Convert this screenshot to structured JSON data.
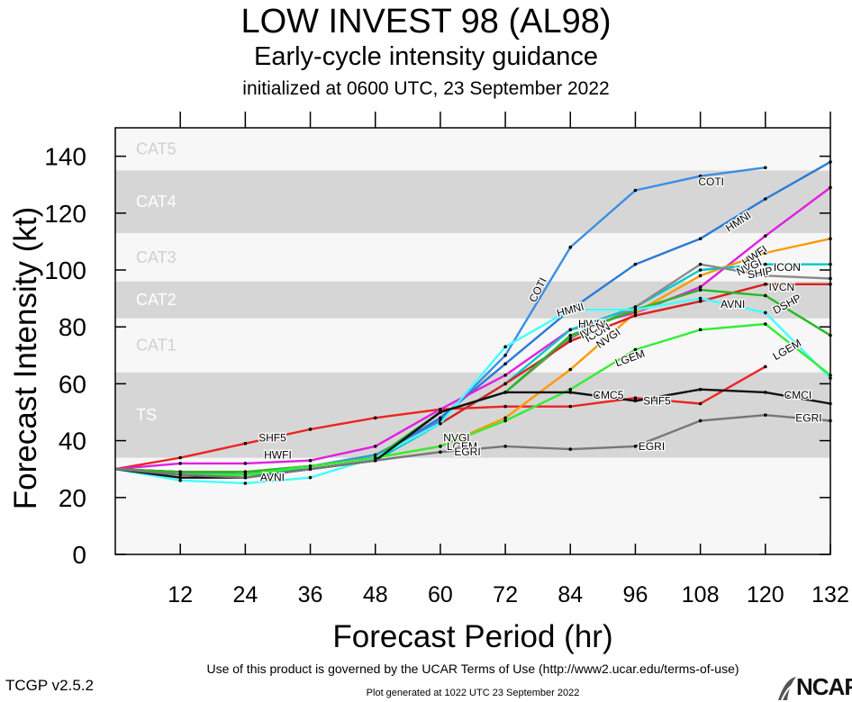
{
  "header": {
    "title": "LOW INVEST 98 (AL98)",
    "subtitle": "Early-cycle intensity guidance",
    "init": "initialized at 0600 UTC, 23 September 2022"
  },
  "footer": {
    "terms": "Use of this product is governed by the UCAR Terms of Use (http://www2.ucar.edu/terms-of-use)",
    "version": "TCGP v2.5.2",
    "generated": "Plot generated at 1022 UTC   23 September 2022",
    "logo": "NCAR"
  },
  "chart_data": {
    "type": "line",
    "xlabel": "Forecast Period (hr)",
    "ylabel": "Forecast Intensity (kt)",
    "xlim": [
      0,
      132
    ],
    "ylim": [
      0,
      150
    ],
    "xticks": [
      12,
      24,
      36,
      48,
      60,
      72,
      84,
      96,
      108,
      120,
      132
    ],
    "yticks": [
      0,
      20,
      40,
      60,
      80,
      100,
      120,
      140
    ],
    "categories": [
      {
        "name": "TS",
        "min": 34,
        "max": 64,
        "shaded": true
      },
      {
        "name": "CAT1",
        "min": 64,
        "max": 83,
        "shaded": false
      },
      {
        "name": "CAT2",
        "min": 83,
        "max": 96,
        "shaded": true
      },
      {
        "name": "CAT3",
        "min": 96,
        "max": 113,
        "shaded": false
      },
      {
        "name": "CAT4",
        "min": 113,
        "max": 135,
        "shaded": true
      },
      {
        "name": "CAT5",
        "min": 135,
        "max": 150,
        "shaded": false
      }
    ],
    "series": [
      {
        "name": "COTI",
        "color": "#3a8ee6",
        "points": [
          [
            0,
            30
          ],
          [
            12,
            28
          ],
          [
            24,
            28
          ],
          [
            36,
            31
          ],
          [
            48,
            35
          ],
          [
            60,
            47
          ],
          [
            72,
            70
          ],
          [
            84,
            108
          ],
          [
            96,
            128
          ],
          [
            108,
            133
          ],
          [
            120,
            136
          ]
        ],
        "labels": [
          {
            "text": "COTI",
            "x": 78,
            "y": 93,
            "angle": -63
          },
          {
            "text": "COTI",
            "x": 110,
            "y": 131,
            "angle": 0
          }
        ]
      },
      {
        "name": "HMNI",
        "color": "#2a7ad6",
        "points": [
          [
            0,
            30
          ],
          [
            12,
            29
          ],
          [
            24,
            28
          ],
          [
            36,
            31
          ],
          [
            48,
            34
          ],
          [
            60,
            48
          ],
          [
            72,
            67
          ],
          [
            84,
            86
          ],
          [
            96,
            102
          ],
          [
            108,
            111
          ],
          [
            120,
            125
          ],
          [
            132,
            138
          ]
        ],
        "labels": [
          {
            "text": "HMNI",
            "x": 84,
            "y": 86,
            "angle": -15
          },
          {
            "text": "HMNI",
            "x": 115,
            "y": 117,
            "angle": -33
          }
        ]
      },
      {
        "name": "SHF5",
        "color": "#ee2222",
        "points": [
          [
            0,
            30
          ],
          [
            12,
            34
          ],
          [
            24,
            39
          ],
          [
            36,
            44
          ],
          [
            48,
            48
          ],
          [
            60,
            51
          ],
          [
            72,
            52
          ],
          [
            84,
            52
          ],
          [
            96,
            55
          ],
          [
            108,
            53
          ],
          [
            120,
            66
          ]
        ],
        "labels": [
          {
            "text": "SHF5",
            "x": 29,
            "y": 41,
            "angle": 0
          },
          {
            "text": "SHF5",
            "x": 100,
            "y": 54,
            "angle": 0
          }
        ]
      },
      {
        "name": "HWFI",
        "color": "#e020e0",
        "points": [
          [
            0,
            30
          ],
          [
            12,
            32
          ],
          [
            24,
            32
          ],
          [
            36,
            33
          ],
          [
            48,
            38
          ],
          [
            60,
            51
          ],
          [
            72,
            63
          ],
          [
            84,
            79
          ],
          [
            96,
            85
          ],
          [
            108,
            94
          ],
          [
            120,
            112
          ],
          [
            132,
            129
          ]
        ],
        "labels": [
          {
            "text": "HWFI",
            "x": 30,
            "y": 35,
            "angle": 0
          },
          {
            "text": "HWFI",
            "x": 88,
            "y": 81,
            "angle": 0
          },
          {
            "text": "HWFI",
            "x": 118,
            "y": 105,
            "angle": -35
          }
        ]
      },
      {
        "name": "NVGI",
        "color": "#ff9900",
        "points": [
          [
            0,
            30
          ],
          [
            12,
            29
          ],
          [
            24,
            29
          ],
          [
            36,
            31
          ],
          [
            48,
            34
          ],
          [
            60,
            38
          ],
          [
            72,
            48
          ],
          [
            84,
            65
          ],
          [
            96,
            85
          ],
          [
            108,
            98
          ],
          [
            120,
            106
          ],
          [
            132,
            111
          ]
        ],
        "labels": [
          {
            "text": "NVGI",
            "x": 63,
            "y": 41,
            "angle": 0
          },
          {
            "text": "NVGI",
            "x": 91,
            "y": 76,
            "angle": -35
          },
          {
            "text": "NVGI",
            "x": 117,
            "y": 101,
            "angle": -25
          }
        ]
      },
      {
        "name": "ICON",
        "color": "#00c8c8",
        "points": [
          [
            0,
            30
          ],
          [
            12,
            29
          ],
          [
            24,
            28
          ],
          [
            36,
            30
          ],
          [
            48,
            33
          ],
          [
            60,
            46
          ],
          [
            72,
            60
          ],
          [
            84,
            79
          ],
          [
            96,
            87
          ],
          [
            108,
            100
          ],
          [
            120,
            102
          ],
          [
            132,
            102
          ]
        ],
        "labels": [
          {
            "text": "ICON",
            "x": 89,
            "y": 78,
            "angle": -30
          },
          {
            "text": "ICON",
            "x": 124,
            "y": 101,
            "angle": 0
          }
        ]
      },
      {
        "name": "SHIP",
        "color": "#8a8a8a",
        "points": [
          [
            0,
            30
          ],
          [
            12,
            29
          ],
          [
            24,
            29
          ],
          [
            36,
            31
          ],
          [
            48,
            34
          ],
          [
            60,
            50
          ],
          [
            72,
            57
          ],
          [
            84,
            76
          ],
          [
            96,
            87
          ],
          [
            108,
            102
          ],
          [
            120,
            98
          ],
          [
            132,
            97
          ]
        ],
        "labels": [
          {
            "text": "SHIP",
            "x": 119,
            "y": 99,
            "angle": -10
          }
        ]
      },
      {
        "name": "IVCN",
        "color": "#dd2020",
        "points": [
          [
            0,
            30
          ],
          [
            12,
            29
          ],
          [
            24,
            29
          ],
          [
            36,
            31
          ],
          [
            48,
            34
          ],
          [
            60,
            46
          ],
          [
            72,
            60
          ],
          [
            84,
            75
          ],
          [
            96,
            84
          ],
          [
            108,
            89
          ],
          [
            120,
            95
          ],
          [
            132,
            95
          ]
        ],
        "labels": [
          {
            "text": "IVCN",
            "x": 88,
            "y": 79,
            "angle": -28
          },
          {
            "text": "IVCN",
            "x": 123,
            "y": 94,
            "angle": 0
          }
        ]
      },
      {
        "name": "DSHP",
        "color": "#22bb22",
        "points": [
          [
            0,
            30
          ],
          [
            12,
            29
          ],
          [
            24,
            29
          ],
          [
            36,
            31
          ],
          [
            48,
            34
          ],
          [
            60,
            50
          ],
          [
            72,
            57
          ],
          [
            84,
            77
          ],
          [
            96,
            86
          ],
          [
            108,
            93
          ],
          [
            120,
            91
          ],
          [
            132,
            77
          ]
        ],
        "labels": [
          {
            "text": "DSHP",
            "x": 124,
            "y": 88,
            "angle": -28
          }
        ]
      },
      {
        "name": "AVNI",
        "color": "#44ffff",
        "points": [
          [
            0,
            30
          ],
          [
            12,
            26
          ],
          [
            24,
            25
          ],
          [
            36,
            27
          ],
          [
            48,
            34
          ],
          [
            60,
            46
          ],
          [
            72,
            73
          ],
          [
            84,
            86
          ],
          [
            96,
            86
          ],
          [
            108,
            90
          ],
          [
            120,
            85
          ],
          [
            132,
            62
          ]
        ],
        "labels": [
          {
            "text": "AVNI",
            "x": 29,
            "y": 27,
            "angle": 0
          },
          {
            "text": "AVNI",
            "x": 114,
            "y": 88,
            "angle": 0
          }
        ]
      },
      {
        "name": "LGEM",
        "color": "#33ee33",
        "points": [
          [
            0,
            30
          ],
          [
            12,
            28
          ],
          [
            24,
            28
          ],
          [
            36,
            31
          ],
          [
            48,
            34
          ],
          [
            60,
            38
          ],
          [
            72,
            47
          ],
          [
            84,
            58
          ],
          [
            96,
            72
          ],
          [
            108,
            79
          ],
          [
            120,
            81
          ],
          [
            132,
            63
          ]
        ],
        "labels": [
          {
            "text": "LGEM",
            "x": 64,
            "y": 38,
            "angle": 0
          },
          {
            "text": "LGEM",
            "x": 95,
            "y": 69,
            "angle": -20
          },
          {
            "text": "LGEM",
            "x": 124,
            "y": 72,
            "angle": -30
          }
        ]
      },
      {
        "name": "CMC5",
        "color": "#111111",
        "points": [
          [
            0,
            30
          ],
          [
            12,
            27
          ],
          [
            24,
            27
          ],
          [
            36,
            30
          ],
          [
            48,
            33
          ],
          [
            60,
            50
          ],
          [
            72,
            57
          ],
          [
            84,
            57
          ],
          [
            96,
            54
          ],
          [
            108,
            58
          ],
          [
            120,
            57
          ],
          [
            132,
            53
          ]
        ],
        "labels": [
          {
            "text": "CMC5",
            "x": 91,
            "y": 56,
            "angle": 0
          },
          {
            "text": "CMCI",
            "x": 126,
            "y": 56,
            "angle": 0
          }
        ]
      },
      {
        "name": "EGRI",
        "color": "#777777",
        "points": [
          [
            0,
            30
          ],
          [
            12,
            28
          ],
          [
            24,
            27
          ],
          [
            36,
            30
          ],
          [
            48,
            33
          ],
          [
            60,
            36
          ],
          [
            72,
            38
          ],
          [
            84,
            37
          ],
          [
            96,
            38
          ],
          [
            108,
            47
          ],
          [
            120,
            49
          ],
          [
            132,
            47
          ]
        ],
        "labels": [
          {
            "text": "EGRI",
            "x": 65,
            "y": 36,
            "angle": 0
          },
          {
            "text": "EGRI",
            "x": 99,
            "y": 38,
            "angle": 0
          },
          {
            "text": "EGRI",
            "x": 128,
            "y": 48,
            "angle": 0
          }
        ]
      }
    ]
  }
}
